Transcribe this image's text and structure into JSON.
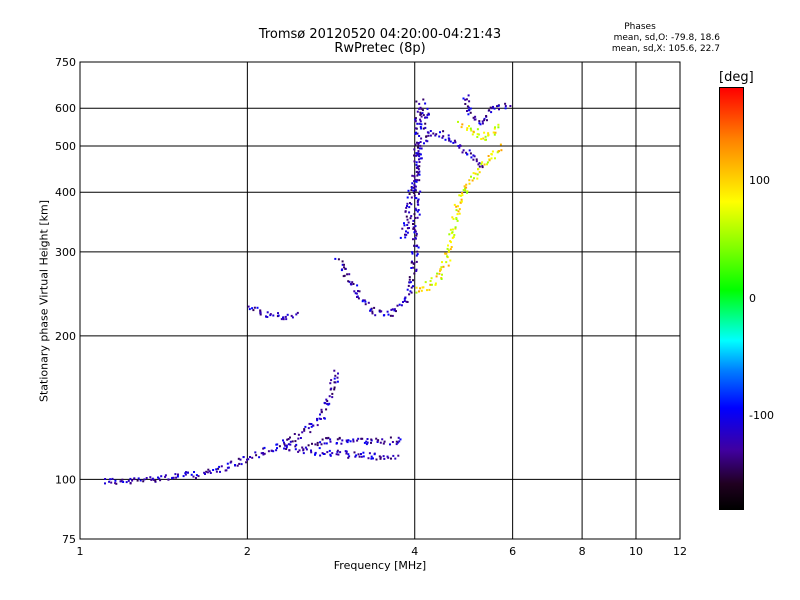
{
  "header": {
    "title_line1": "Tromsø 20120520 04:20:00-04:21:43",
    "title_line2": "RwPretec (8p)",
    "phases_title": "Phases",
    "phases_o": "mean, sd,O: -79.8, 18.6",
    "phases_x": "mean, sd,X: 105.6, 22.7"
  },
  "colorbar": {
    "title": "[deg]",
    "ticks": [
      {
        "value": 100,
        "label": "100"
      },
      {
        "value": 0,
        "label": "0"
      },
      {
        "value": -100,
        "label": "-100"
      }
    ],
    "range": [
      -180,
      180
    ],
    "colors": [
      "#000000",
      "#200020",
      "#4000a0",
      "#0000ff",
      "#0080ff",
      "#00ffff",
      "#00ff00",
      "#80ff00",
      "#ffff00",
      "#ff8000",
      "#ff0000"
    ]
  },
  "chart_data": {
    "type": "scatter",
    "title": "Tromsø 20120520 04:20:00-04:21:43",
    "subtitle": "RwPretec (8p)",
    "xlabel": "Frequency [MHz]",
    "ylabel": "Stationary phase Virtual Height [km]",
    "xscale": "log",
    "yscale": "log",
    "xlim": [
      1,
      12
    ],
    "ylim": [
      75,
      750
    ],
    "xticks": [
      1,
      2,
      4,
      6,
      8,
      10,
      12
    ],
    "yticks": [
      75,
      100,
      200,
      300,
      400,
      500,
      600,
      750
    ],
    "xgrid": [
      2,
      4,
      6,
      8,
      10
    ],
    "ygrid": [
      100,
      200,
      300,
      400,
      500,
      600
    ],
    "grid": true,
    "series": [
      {
        "name": "O",
        "color_value": -100,
        "traces": [
          [
            [
              1.1,
              100
            ],
            [
              1.2,
              99
            ],
            [
              1.35,
              101
            ],
            [
              1.5,
              102
            ],
            [
              1.65,
              103
            ],
            [
              1.8,
              106
            ],
            [
              1.95,
              110
            ],
            [
              2.1,
              114
            ],
            [
              2.3,
              118
            ],
            [
              2.5,
              125
            ],
            [
              2.7,
              135
            ],
            [
              2.8,
              150
            ],
            [
              2.9,
              170
            ]
          ],
          [
            [
              2.3,
              118
            ],
            [
              2.5,
              116
            ],
            [
              2.8,
              114
            ],
            [
              3.1,
              113
            ],
            [
              3.4,
              112
            ],
            [
              3.7,
              111
            ]
          ],
          [
            [
              2.6,
              120
            ],
            [
              2.9,
              121
            ],
            [
              3.2,
              121
            ],
            [
              3.5,
              121
            ],
            [
              3.8,
              121
            ]
          ],
          [
            [
              2.0,
              232
            ],
            [
              2.15,
              222
            ],
            [
              2.3,
              220
            ],
            [
              2.45,
              223
            ]
          ],
          [
            [
              2.9,
              290
            ],
            [
              3.0,
              270
            ],
            [
              3.2,
              240
            ],
            [
              3.4,
              225
            ],
            [
              3.6,
              222
            ],
            [
              3.8,
              235
            ],
            [
              3.95,
              260
            ],
            [
              4.0,
              320
            ],
            [
              4.02,
              420
            ],
            [
              4.05,
              620
            ]
          ],
          [
            [
              3.8,
              320
            ],
            [
              3.9,
              380
            ],
            [
              4.0,
              450
            ],
            [
              4.1,
              500
            ],
            [
              4.3,
              540
            ],
            [
              4.6,
              520
            ],
            [
              5.0,
              480
            ],
            [
              5.3,
              450
            ]
          ],
          [
            [
              4.9,
              640
            ],
            [
              5.0,
              600
            ],
            [
              5.2,
              560
            ],
            [
              5.5,
              600
            ],
            [
              5.9,
              610
            ]
          ],
          [
            [
              4.1,
              620
            ],
            [
              4.2,
              590
            ],
            [
              4.1,
              560
            ],
            [
              4.2,
              540
            ]
          ]
        ]
      },
      {
        "name": "X",
        "color_value": 105,
        "traces": [
          [
            [
              4.0,
              250
            ],
            [
              4.2,
              255
            ],
            [
              4.4,
              265
            ],
            [
              4.55,
              290
            ],
            [
              4.65,
              330
            ],
            [
              4.75,
              370
            ],
            [
              4.85,
              400
            ],
            [
              5.0,
              420
            ],
            [
              5.2,
              450
            ],
            [
              5.5,
              480
            ],
            [
              5.7,
              500
            ]
          ],
          [
            [
              4.8,
              560
            ],
            [
              5.1,
              540
            ],
            [
              5.4,
              520
            ],
            [
              5.6,
              560
            ]
          ]
        ]
      }
    ]
  }
}
